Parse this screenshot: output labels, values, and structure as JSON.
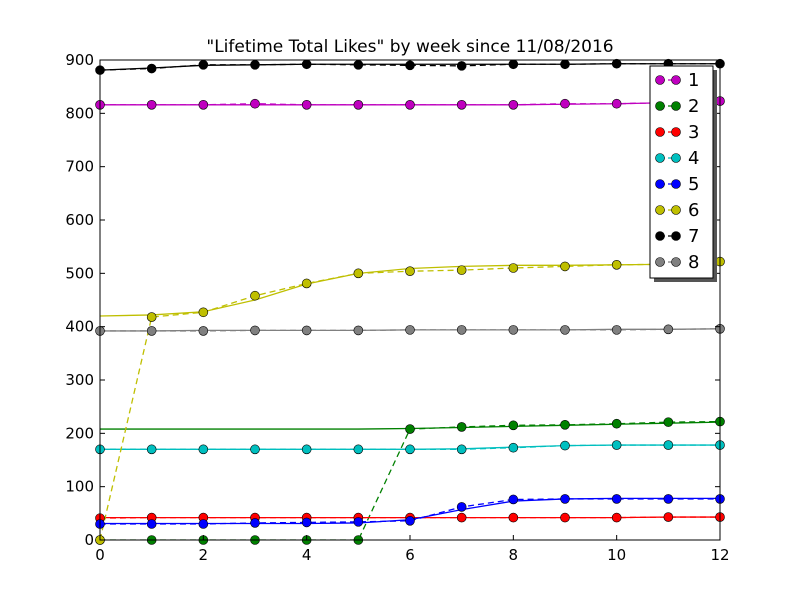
{
  "chart_data": {
    "type": "line",
    "title": "\"Lifetime Total Likes\" by week since 11/08/2016",
    "xlabel": "",
    "ylabel": "",
    "xlim": [
      0,
      12
    ],
    "ylim": [
      0,
      900
    ],
    "xticks": [
      0,
      2,
      4,
      6,
      8,
      10,
      12
    ],
    "yticks": [
      0,
      100,
      200,
      300,
      400,
      500,
      600,
      700,
      800,
      900
    ],
    "grid": false,
    "legend_position": "top-right",
    "x": [
      0,
      1,
      2,
      3,
      4,
      5,
      6,
      7,
      8,
      9,
      10,
      11,
      12
    ],
    "series": [
      {
        "name": "1",
        "color": "#bf00bf",
        "points": [
          816,
          816,
          816,
          818,
          816,
          816,
          816,
          816,
          816,
          818,
          818,
          820,
          823
        ],
        "fit": [
          816,
          816,
          816,
          816,
          816,
          816,
          816,
          816,
          816,
          817,
          818,
          820,
          823
        ]
      },
      {
        "name": "2",
        "color": "#008000",
        "points": [
          0,
          0,
          0,
          0,
          0,
          0,
          208,
          212,
          215,
          216,
          218,
          221,
          222
        ],
        "fit": [
          208,
          208,
          208,
          208,
          208,
          208,
          209,
          211,
          213,
          215,
          217,
          219,
          221
        ]
      },
      {
        "name": "3",
        "color": "#ff0000",
        "points": [
          41,
          42,
          42,
          42,
          42,
          42,
          42,
          42,
          42,
          42,
          42,
          43,
          43
        ],
        "fit": [
          42,
          42,
          42,
          42,
          42,
          42,
          42,
          42,
          42,
          42,
          42,
          43,
          43
        ]
      },
      {
        "name": "4",
        "color": "#00bfbf",
        "points": [
          170,
          170,
          170,
          170,
          170,
          170,
          170,
          170,
          173,
          177,
          178,
          178,
          178
        ],
        "fit": [
          170,
          170,
          170,
          170,
          170,
          170,
          170,
          171,
          174,
          177,
          178,
          178,
          178
        ]
      },
      {
        "name": "5",
        "color": "#0000ff",
        "points": [
          30,
          30,
          30,
          32,
          33,
          34,
          36,
          62,
          76,
          77,
          77,
          77,
          77
        ],
        "fit": [
          31,
          31,
          31,
          31,
          31,
          32,
          38,
          57,
          73,
          77,
          78,
          78,
          78
        ]
      },
      {
        "name": "6",
        "color": "#bfbf00",
        "points": [
          0,
          418,
          427,
          458,
          481,
          500,
          504,
          506,
          510,
          513,
          516,
          517,
          522
        ],
        "fit": [
          420,
          422,
          428,
          450,
          480,
          500,
          509,
          513,
          515,
          515,
          516,
          517,
          518
        ]
      },
      {
        "name": "7",
        "color": "#000000",
        "points": [
          881,
          884,
          891,
          891,
          892,
          891,
          890,
          889,
          892,
          892,
          893,
          893,
          893
        ],
        "fit": [
          881,
          885,
          890,
          891,
          892,
          892,
          892,
          892,
          892,
          892,
          893,
          893,
          893
        ]
      },
      {
        "name": "8",
        "color": "#808080",
        "points": [
          392,
          392,
          392,
          393,
          393,
          393,
          394,
          394,
          394,
          394,
          394,
          395,
          396
        ],
        "fit": [
          392,
          392,
          393,
          393,
          393,
          393,
          394,
          394,
          394,
          394,
          395,
          395,
          396
        ]
      }
    ]
  }
}
